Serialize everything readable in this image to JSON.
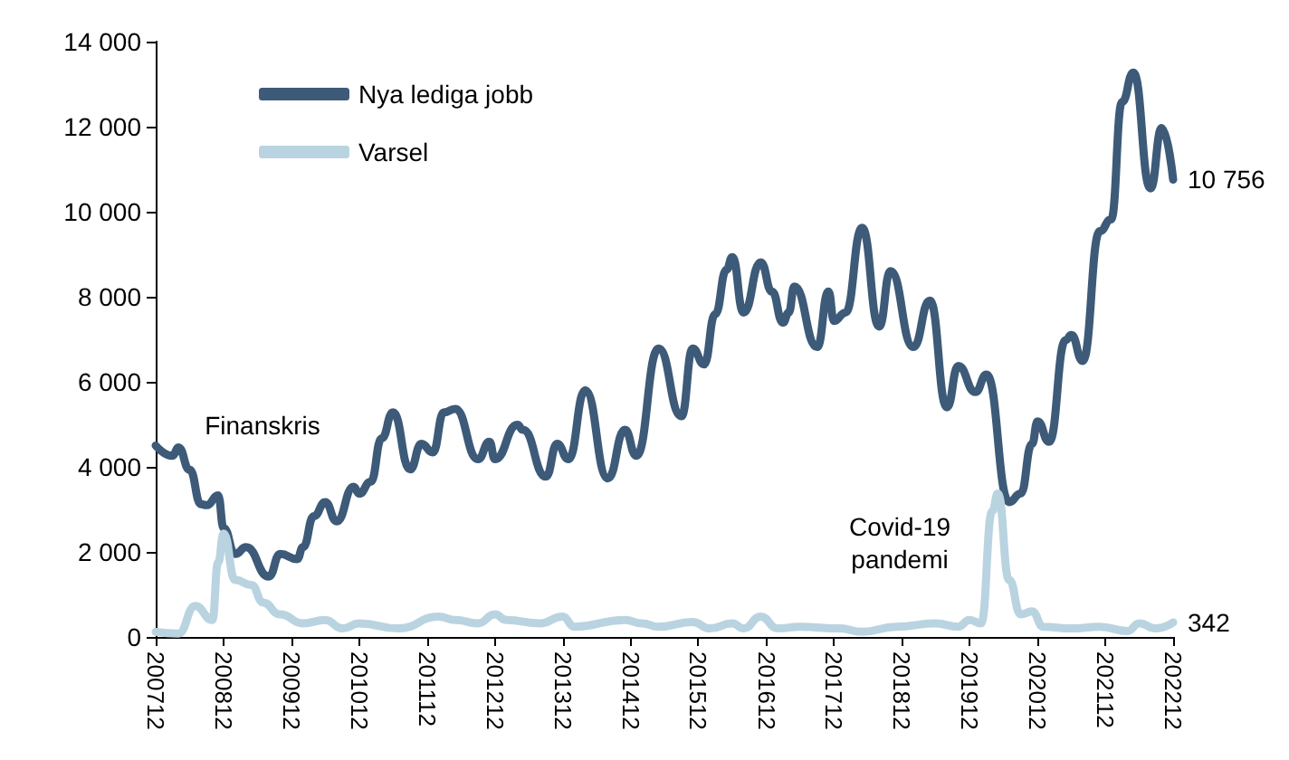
{
  "chart_data": {
    "type": "line",
    "legend": "top left",
    "grid": false,
    "marker": "none",
    "line_style": "solid",
    "xlim": [
      "2007-12",
      "2022-12"
    ],
    "xticks": [
      {
        "value": "2007-12",
        "label": "200712"
      },
      {
        "value": "2008-12",
        "label": "200812"
      },
      {
        "value": "2009-12",
        "label": "200912"
      },
      {
        "value": "2010-12",
        "label": "201012"
      },
      {
        "value": "2011-12",
        "label": "201112"
      },
      {
        "value": "2012-12",
        "label": "201212"
      },
      {
        "value": "2013-12",
        "label": "201312"
      },
      {
        "value": "2014-12",
        "label": "201412"
      },
      {
        "value": "2015-12",
        "label": "201512"
      },
      {
        "value": "2016-12",
        "label": "201612"
      },
      {
        "value": "2017-12",
        "label": "201712"
      },
      {
        "value": "2018-12",
        "label": "201812"
      },
      {
        "value": "2019-12",
        "label": "201912"
      },
      {
        "value": "2020-12",
        "label": "202012"
      },
      {
        "value": "2021-12",
        "label": "202112"
      },
      {
        "value": "2022-12",
        "label": "202212"
      }
    ],
    "ylim": [
      0,
      14000
    ],
    "yticks": [
      {
        "value": 0,
        "label": "0"
      },
      {
        "value": 2000,
        "label": "2 000"
      },
      {
        "value": 4000,
        "label": "4 000"
      },
      {
        "value": 6000,
        "label": "6 000"
      },
      {
        "value": 8000,
        "label": "8 000"
      },
      {
        "value": 10000,
        "label": "10 000"
      },
      {
        "value": 12000,
        "label": "12 000"
      },
      {
        "value": 14000,
        "label": "14 000"
      }
    ],
    "series": [
      {
        "name": "Nya lediga jobb",
        "color": "#3d5a78",
        "x": [
          "2007-12",
          "2008-03",
          "2008-04",
          "2008-06",
          "2008-08",
          "2008-09",
          "2008-11",
          "2008-12",
          "2009-02",
          "2009-04",
          "2009-08",
          "2009-10",
          "2010-01",
          "2010-02",
          "2010-04",
          "2010-06",
          "2010-08",
          "2010-11",
          "2010-12",
          "2011-02",
          "2011-04",
          "2011-06",
          "2011-09",
          "2011-11",
          "2012-01",
          "2012-03",
          "2012-05",
          "2012-09",
          "2012-11",
          "2012-12",
          "2013-04",
          "2013-05",
          "2013-09",
          "2013-11",
          "2014-01",
          "2014-04",
          "2014-08",
          "2014-11",
          "2015-01",
          "2015-05",
          "2015-09",
          "2015-11",
          "2016-01",
          "2016-03",
          "2016-05",
          "2016-06",
          "2016-08",
          "2016-11",
          "2017-01",
          "2017-03",
          "2017-04",
          "2017-05",
          "2017-09",
          "2017-11",
          "2017-12",
          "2018-02",
          "2018-05",
          "2018-08",
          "2018-10",
          "2019-02",
          "2019-05",
          "2019-08",
          "2019-10",
          "2020-01",
          "2020-03",
          "2020-07",
          "2020-09",
          "2020-11",
          "2020-12",
          "2021-02",
          "2021-05",
          "2021-06",
          "2021-08",
          "2021-11",
          "2022-01",
          "2022-03",
          "2022-05",
          "2022-08",
          "2022-10",
          "2022-12"
        ],
        "values": [
          4500,
          4260,
          4460,
          3930,
          3120,
          3100,
          3330,
          2560,
          1950,
          2110,
          1420,
          1950,
          1830,
          2110,
          2840,
          3170,
          2720,
          3530,
          3370,
          3650,
          4670,
          5280,
          3940,
          4540,
          4340,
          5280,
          5360,
          4180,
          4590,
          4180,
          4990,
          4870,
          3770,
          4540,
          4180,
          5800,
          3730,
          4870,
          4260,
          6780,
          5190,
          6780,
          6410,
          7590,
          8640,
          8930,
          7630,
          8810,
          8120,
          7390,
          7630,
          8240,
          6820,
          8120,
          7430,
          7630,
          9620,
          7300,
          8600,
          6820,
          7910,
          5400,
          6370,
          5760,
          6170,
          3170,
          3370,
          4540,
          5070,
          4590,
          6980,
          7100,
          6490,
          9540,
          9820,
          12580,
          13270,
          10550,
          11970,
          10756
        ],
        "value_labels": [
          null,
          null,
          null,
          null,
          null,
          null,
          null,
          null,
          null,
          null,
          null,
          null,
          null,
          null,
          null,
          null,
          null,
          null,
          null,
          null,
          null,
          null,
          null,
          null,
          null,
          null,
          null,
          null,
          null,
          null,
          null,
          null,
          null,
          null,
          null,
          null,
          null,
          null,
          null,
          null,
          null,
          null,
          null,
          null,
          null,
          null,
          null,
          null,
          null,
          null,
          null,
          null,
          null,
          null,
          null,
          null,
          null,
          null,
          null,
          null,
          null,
          null,
          null,
          null,
          null,
          null,
          null,
          null,
          null,
          null,
          null,
          null,
          null,
          null,
          null,
          null,
          null,
          null,
          null,
          "10 756"
        ]
      },
      {
        "name": "Varsel",
        "color": "#b9d4e0",
        "x": [
          "2007-12",
          "2008-04",
          "2008-07",
          "2008-10",
          "2008-11",
          "2008-12",
          "2009-02",
          "2009-05",
          "2009-07",
          "2009-10",
          "2010-02",
          "2010-06",
          "2010-09",
          "2010-12",
          "2011-07",
          "2012-02",
          "2012-05",
          "2012-09",
          "2012-12",
          "2013-02",
          "2013-08",
          "2013-12",
          "2014-02",
          "2014-11",
          "2015-02",
          "2015-05",
          "2015-11",
          "2016-02",
          "2016-06",
          "2016-08",
          "2016-11",
          "2017-02",
          "2017-06",
          "2018-01",
          "2018-05",
          "2018-11",
          "2019-06",
          "2019-10",
          "2019-12",
          "2020-02",
          "2020-04",
          "2020-05",
          "2020-07",
          "2020-09",
          "2020-11",
          "2021-01",
          "2021-06",
          "2021-11",
          "2022-04",
          "2022-06",
          "2022-09",
          "2022-12"
        ],
        "values": [
          120,
          80,
          730,
          400,
          1750,
          2430,
          1340,
          1220,
          810,
          530,
          320,
          400,
          200,
          320,
          200,
          480,
          400,
          320,
          530,
          400,
          320,
          480,
          240,
          400,
          320,
          240,
          350,
          200,
          320,
          200,
          480,
          200,
          240,
          200,
          120,
          240,
          320,
          240,
          400,
          320,
          2960,
          3370,
          1340,
          530,
          600,
          240,
          200,
          240,
          140,
          320,
          200,
          342
        ],
        "value_labels": [
          null,
          null,
          null,
          null,
          null,
          null,
          null,
          null,
          null,
          null,
          null,
          null,
          null,
          null,
          null,
          null,
          null,
          null,
          null,
          null,
          null,
          null,
          null,
          null,
          null,
          null,
          null,
          null,
          null,
          null,
          null,
          null,
          null,
          null,
          null,
          null,
          null,
          null,
          null,
          null,
          null,
          null,
          null,
          null,
          null,
          null,
          null,
          null,
          null,
          null,
          null,
          "342"
        ]
      }
    ],
    "annotations": [
      "Finanskris",
      "Covid-19\npandemi"
    ]
  }
}
